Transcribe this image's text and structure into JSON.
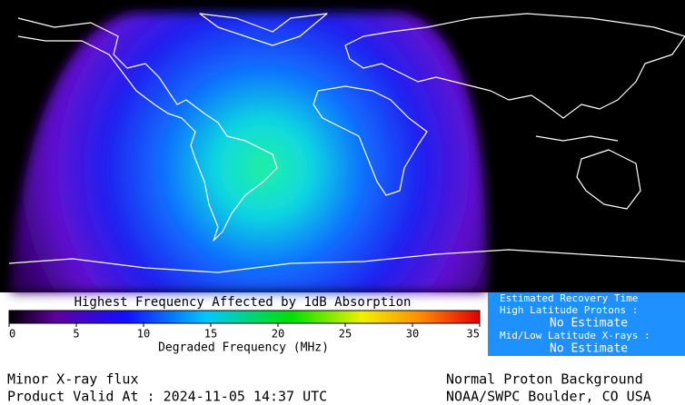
{
  "map": {
    "title": "Highest Frequency Affected by 1dB Absorption",
    "scale": {
      "ticks": [
        0,
        5,
        10,
        15,
        20,
        25,
        30,
        35
      ],
      "axis_label": "Degraded Frequency (MHz)"
    }
  },
  "recovery": {
    "title": "Estimated Recovery Time",
    "high_lat_label": "High Latitude Protons :",
    "high_lat_value": "No Estimate",
    "mid_low_label": "Mid/Low Latitude X-rays :",
    "mid_low_value": "No Estimate"
  },
  "footer": {
    "left": [
      "Minor X-ray flux",
      "Product Valid At : 2024-11-05 14:37 UTC"
    ],
    "right": [
      "Normal Proton Background",
      "NOAA/SWPC Boulder, CO USA"
    ]
  }
}
